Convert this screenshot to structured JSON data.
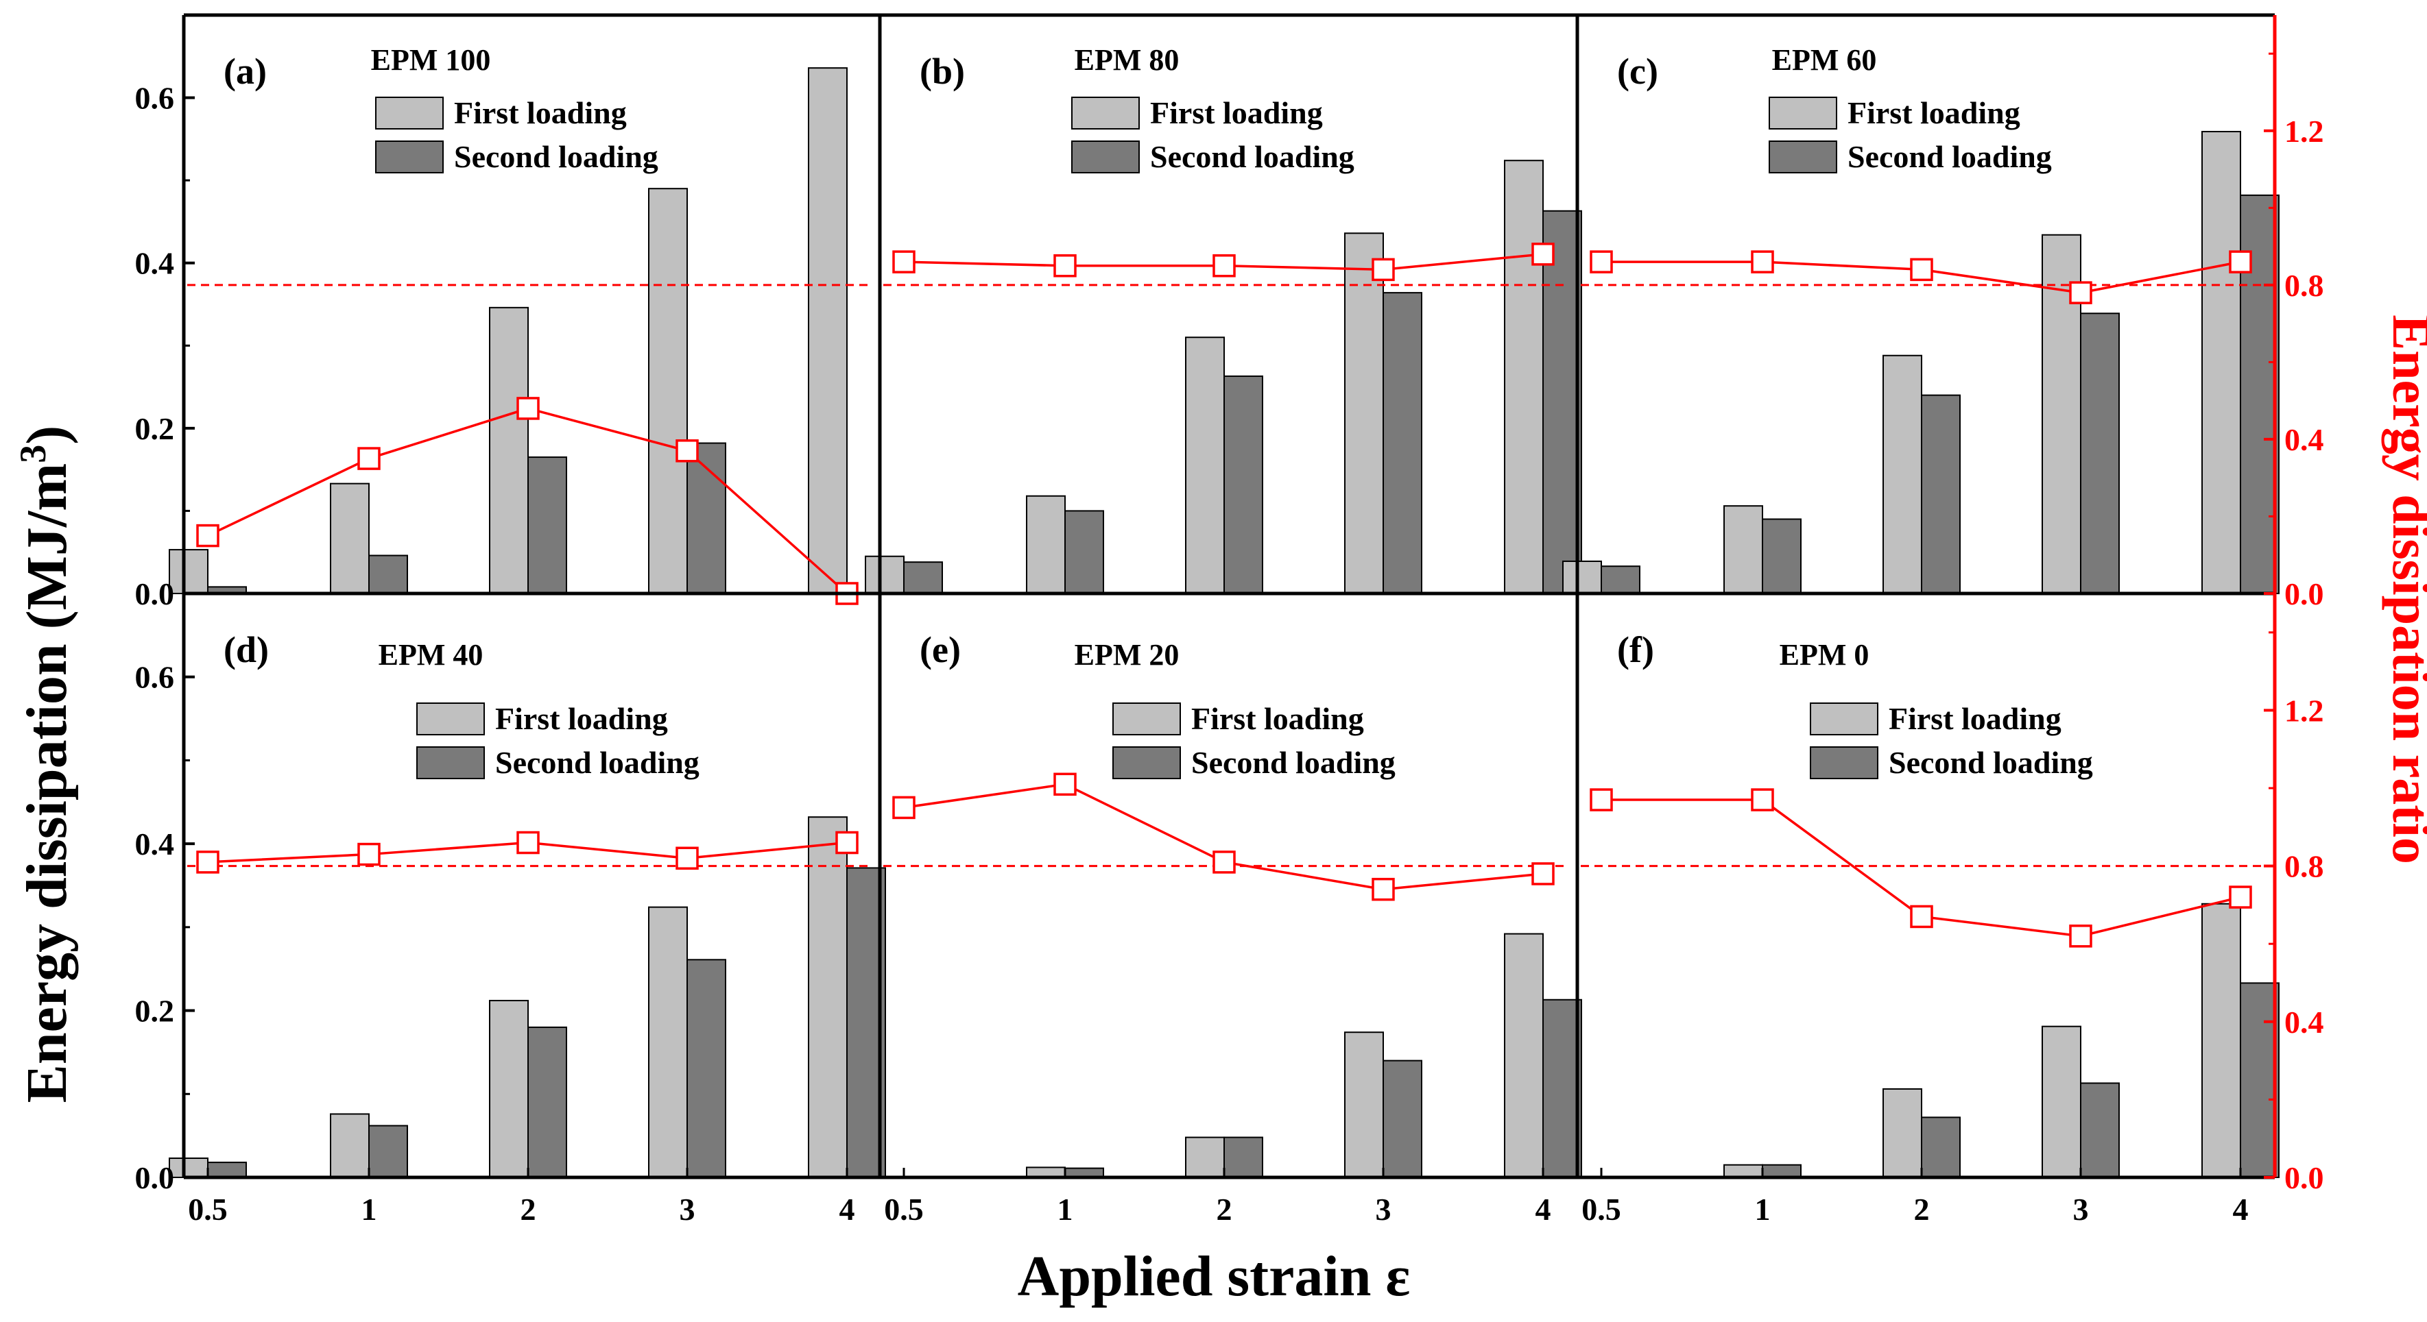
{
  "figure": {
    "ylabel_left": "Energy dissipation (MJ/m³)",
    "ylabel_left_base": "Energy dissipation (MJ/m",
    "ylabel_left_sup": "3",
    "ylabel_left_end": ")",
    "ylabel_right": "Energy dissipation ratio",
    "xlabel": "Applied strain ε",
    "left_ticks": [
      "0.0",
      "0.2",
      "0.4",
      "0.6"
    ],
    "right_ticks": [
      "0.0",
      "0.4",
      "0.8",
      "1.2"
    ],
    "x_ticks": [
      "0.5",
      "1",
      "2",
      "3",
      "4"
    ],
    "legend": [
      "First loading",
      "Second loading"
    ],
    "colors": {
      "first": "#c0c0c0",
      "second": "#7a7a7a",
      "ratio": "#ff0000",
      "axis": "#000000"
    }
  },
  "chart_data": [
    {
      "type": "bar",
      "panel": "(a)",
      "title": "EPM  100",
      "categories": [
        "0.5",
        "1",
        "2",
        "3",
        "4"
      ],
      "series": [
        {
          "name": "First loading",
          "values": [
            0.053,
            0.133,
            0.346,
            0.49,
            0.636
          ]
        },
        {
          "name": "Second loading",
          "values": [
            0.008,
            0.046,
            0.165,
            0.182,
            0.0
          ]
        }
      ],
      "ratio": [
        0.15,
        0.35,
        0.48,
        0.37,
        0.0
      ],
      "ratio_mean": 0.8,
      "ylim": [
        0,
        0.7
      ],
      "ylim_right": [
        0,
        1.5
      ]
    },
    {
      "type": "bar",
      "panel": "(b)",
      "title": "EPM  80",
      "categories": [
        "0.5",
        "1",
        "2",
        "3",
        "4"
      ],
      "series": [
        {
          "name": "First loading",
          "values": [
            0.045,
            0.118,
            0.31,
            0.436,
            0.524
          ]
        },
        {
          "name": "Second loading",
          "values": [
            0.038,
            0.1,
            0.263,
            0.364,
            0.463
          ]
        }
      ],
      "ratio": [
        0.86,
        0.85,
        0.85,
        0.84,
        0.88
      ],
      "ratio_mean": 0.8,
      "ylim": [
        0,
        0.7
      ],
      "ylim_right": [
        0,
        1.5
      ]
    },
    {
      "type": "bar",
      "panel": "(c)",
      "title": "EPM  60",
      "categories": [
        "0.5",
        "1",
        "2",
        "3",
        "4"
      ],
      "series": [
        {
          "name": "First loading",
          "values": [
            0.039,
            0.106,
            0.288,
            0.434,
            0.559
          ]
        },
        {
          "name": "Second loading",
          "values": [
            0.033,
            0.09,
            0.24,
            0.339,
            0.482
          ]
        }
      ],
      "ratio": [
        0.86,
        0.86,
        0.84,
        0.78,
        0.86
      ],
      "ratio_mean": 0.8,
      "ylim": [
        0,
        0.7
      ],
      "ylim_right": [
        0,
        1.5
      ]
    },
    {
      "type": "bar",
      "panel": "(d)",
      "title": "EPM  40",
      "categories": [
        "0.5",
        "1",
        "2",
        "3",
        "4"
      ],
      "series": [
        {
          "name": "First loading",
          "values": [
            0.023,
            0.076,
            0.212,
            0.324,
            0.432
          ]
        },
        {
          "name": "Second loading",
          "values": [
            0.018,
            0.062,
            0.18,
            0.261,
            0.371
          ]
        }
      ],
      "ratio": [
        0.81,
        0.83,
        0.86,
        0.82,
        0.86
      ],
      "ratio_mean": 0.8,
      "ylim": [
        0,
        0.7
      ],
      "ylim_right": [
        0,
        1.5
      ]
    },
    {
      "type": "bar",
      "panel": "(e)",
      "title": "EPM  20",
      "categories": [
        "0.5",
        "1",
        "2",
        "3",
        "4"
      ],
      "series": [
        {
          "name": "First loading",
          "values": [
            0.0,
            0.012,
            0.048,
            0.174,
            0.292
          ]
        },
        {
          "name": "Second loading",
          "values": [
            0.0,
            0.011,
            0.048,
            0.14,
            0.213
          ]
        }
      ],
      "ratio": [
        0.95,
        1.01,
        0.81,
        0.74,
        0.78
      ],
      "ratio_mean": 0.8,
      "ylim": [
        0,
        0.7
      ],
      "ylim_right": [
        0,
        1.5
      ]
    },
    {
      "type": "bar",
      "panel": "(f)",
      "title": "EPM  0",
      "categories": [
        "0.5",
        "1",
        "2",
        "3",
        "4"
      ],
      "series": [
        {
          "name": "First loading",
          "values": [
            0.0,
            0.015,
            0.106,
            0.181,
            0.328
          ]
        },
        {
          "name": "Second loading",
          "values": [
            0.0,
            0.015,
            0.072,
            0.113,
            0.233
          ]
        }
      ],
      "ratio": [
        0.97,
        0.97,
        0.67,
        0.62,
        0.72
      ],
      "ratio_mean": 0.8,
      "ylim": [
        0,
        0.7
      ],
      "ylim_right": [
        0,
        1.5
      ]
    }
  ]
}
